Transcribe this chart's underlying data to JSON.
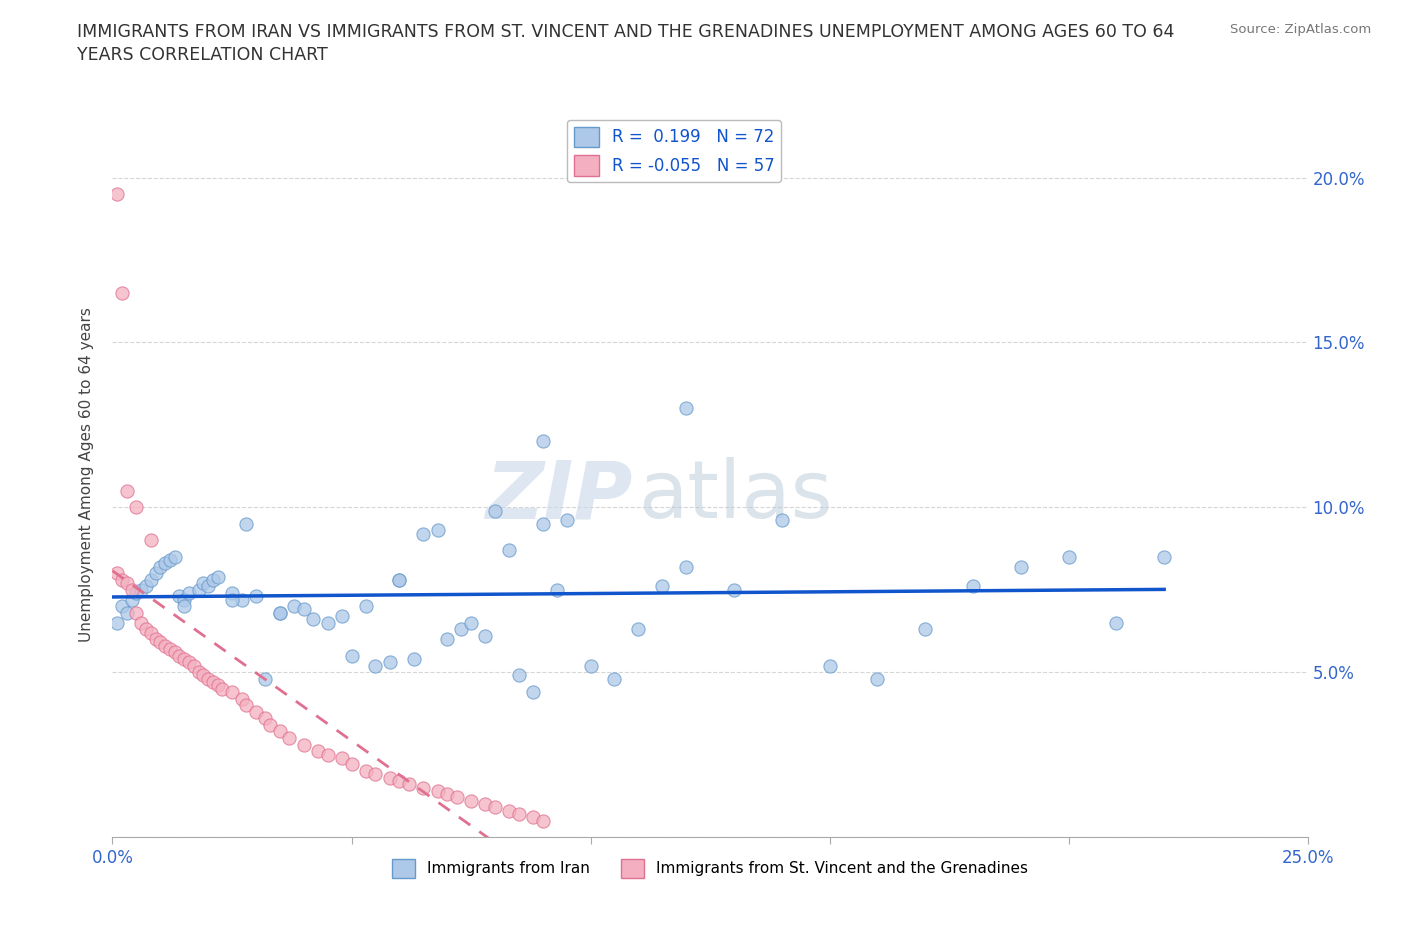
{
  "title_line1": "IMMIGRANTS FROM IRAN VS IMMIGRANTS FROM ST. VINCENT AND THE GRENADINES UNEMPLOYMENT AMONG AGES 60 TO 64",
  "title_line2": "YEARS CORRELATION CHART",
  "source_text": "Source: ZipAtlas.com",
  "ylabel": "Unemployment Among Ages 60 to 64 years",
  "xlim": [
    0.0,
    0.25
  ],
  "ylim": [
    0.0,
    0.22
  ],
  "iran_color": "#adc8e8",
  "iran_edge_color": "#6699cc",
  "svg_color": "#f4b0c0",
  "svg_edge_color": "#e07090",
  "iran_R": 0.199,
  "iran_N": 72,
  "svg_R": -0.055,
  "svg_N": 57,
  "legend_iran_label": "Immigrants from Iran",
  "legend_svg_label": "Immigrants from St. Vincent and the Grenadines",
  "watermark_zip": "ZIP",
  "watermark_atlas": "atlas",
  "iran_line_color": "#1155cc",
  "svg_line_color": "#e07090",
  "iran_x": [
    0.001,
    0.002,
    0.003,
    0.004,
    0.005,
    0.006,
    0.007,
    0.008,
    0.009,
    0.01,
    0.011,
    0.012,
    0.013,
    0.014,
    0.015,
    0.016,
    0.018,
    0.019,
    0.02,
    0.021,
    0.022,
    0.025,
    0.027,
    0.028,
    0.03,
    0.032,
    0.035,
    0.038,
    0.04,
    0.042,
    0.045,
    0.048,
    0.05,
    0.053,
    0.055,
    0.058,
    0.06,
    0.063,
    0.065,
    0.068,
    0.07,
    0.073,
    0.075,
    0.078,
    0.08,
    0.083,
    0.085,
    0.088,
    0.09,
    0.093,
    0.095,
    0.1,
    0.105,
    0.11,
    0.115,
    0.12,
    0.13,
    0.14,
    0.15,
    0.16,
    0.17,
    0.18,
    0.19,
    0.2,
    0.21,
    0.22,
    0.015,
    0.025,
    0.035,
    0.06,
    0.09,
    0.12
  ],
  "iran_y": [
    0.065,
    0.07,
    0.068,
    0.072,
    0.074,
    0.075,
    0.076,
    0.078,
    0.08,
    0.082,
    0.083,
    0.084,
    0.085,
    0.073,
    0.072,
    0.074,
    0.075,
    0.077,
    0.076,
    0.078,
    0.079,
    0.074,
    0.072,
    0.095,
    0.073,
    0.048,
    0.068,
    0.07,
    0.069,
    0.066,
    0.065,
    0.067,
    0.055,
    0.07,
    0.052,
    0.053,
    0.078,
    0.054,
    0.092,
    0.093,
    0.06,
    0.063,
    0.065,
    0.061,
    0.099,
    0.087,
    0.049,
    0.044,
    0.12,
    0.075,
    0.096,
    0.052,
    0.048,
    0.063,
    0.076,
    0.082,
    0.075,
    0.096,
    0.052,
    0.048,
    0.063,
    0.076,
    0.082,
    0.085,
    0.065,
    0.085,
    0.07,
    0.072,
    0.068,
    0.078,
    0.095,
    0.13
  ],
  "svg_x": [
    0.001,
    0.002,
    0.003,
    0.004,
    0.005,
    0.006,
    0.007,
    0.008,
    0.009,
    0.01,
    0.011,
    0.012,
    0.013,
    0.014,
    0.015,
    0.016,
    0.017,
    0.018,
    0.019,
    0.02,
    0.021,
    0.022,
    0.023,
    0.025,
    0.027,
    0.028,
    0.03,
    0.032,
    0.033,
    0.035,
    0.037,
    0.04,
    0.043,
    0.045,
    0.048,
    0.05,
    0.053,
    0.055,
    0.058,
    0.06,
    0.062,
    0.065,
    0.068,
    0.07,
    0.072,
    0.075,
    0.078,
    0.08,
    0.083,
    0.085,
    0.088,
    0.09,
    0.001,
    0.002,
    0.003,
    0.005,
    0.008
  ],
  "svg_y": [
    0.08,
    0.078,
    0.077,
    0.075,
    0.068,
    0.065,
    0.063,
    0.062,
    0.06,
    0.059,
    0.058,
    0.057,
    0.056,
    0.055,
    0.054,
    0.053,
    0.052,
    0.05,
    0.049,
    0.048,
    0.047,
    0.046,
    0.045,
    0.044,
    0.042,
    0.04,
    0.038,
    0.036,
    0.034,
    0.032,
    0.03,
    0.028,
    0.026,
    0.025,
    0.024,
    0.022,
    0.02,
    0.019,
    0.018,
    0.017,
    0.016,
    0.015,
    0.014,
    0.013,
    0.012,
    0.011,
    0.01,
    0.009,
    0.008,
    0.007,
    0.006,
    0.005,
    0.195,
    0.165,
    0.105,
    0.1,
    0.09
  ]
}
